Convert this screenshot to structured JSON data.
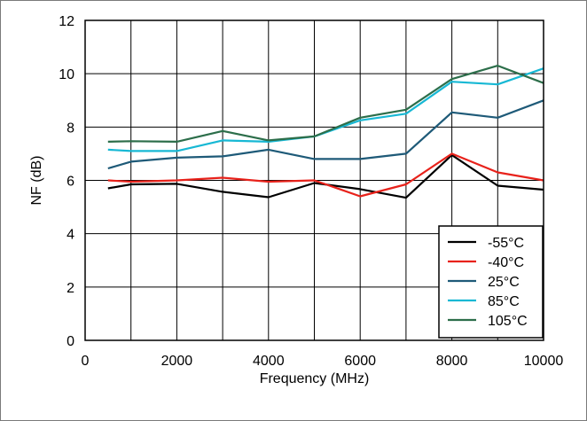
{
  "chart_data": {
    "type": "line",
    "title": "",
    "xlabel": "Frequency (MHz)",
    "ylabel": "NF (dB)",
    "xlim": [
      0,
      10000
    ],
    "ylim": [
      0,
      12
    ],
    "x_ticks": [
      0,
      2000,
      4000,
      6000,
      8000,
      10000
    ],
    "y_ticks": [
      0,
      2,
      4,
      6,
      8,
      10,
      12
    ],
    "x_tick_labels": [
      "0",
      "2000",
      "4000",
      "6000",
      "8000",
      "10000"
    ],
    "y_tick_labels": [
      "0",
      "2",
      "4",
      "6",
      "8",
      "10",
      "12"
    ],
    "x_grid": [
      0,
      1000,
      2000,
      3000,
      4000,
      5000,
      6000,
      7000,
      8000,
      9000,
      10000
    ],
    "y_grid": [
      0,
      2,
      4,
      6,
      8,
      10,
      12
    ],
    "grid": true,
    "legend_position": "bottom-right",
    "x": [
      500,
      1000,
      2000,
      3000,
      4000,
      5000,
      6000,
      7000,
      8000,
      9000,
      10000
    ],
    "series": [
      {
        "name": "-55°C",
        "color": "#000000",
        "values": [
          5.7,
          5.85,
          5.87,
          5.57,
          5.37,
          5.9,
          5.67,
          5.35,
          6.95,
          5.8,
          5.65
        ]
      },
      {
        "name": "-40°C",
        "color": "#e8221b",
        "values": [
          6.0,
          5.95,
          6.0,
          6.1,
          5.95,
          6.0,
          5.4,
          5.85,
          7.0,
          6.3,
          6.0
        ]
      },
      {
        "name": "25°C",
        "color": "#1e5a78",
        "values": [
          6.45,
          6.7,
          6.85,
          6.9,
          7.15,
          6.8,
          6.8,
          7.0,
          8.55,
          8.35,
          9.0
        ]
      },
      {
        "name": "85°C",
        "color": "#17b8d4",
        "values": [
          7.15,
          7.1,
          7.1,
          7.5,
          7.45,
          7.65,
          8.25,
          8.5,
          9.7,
          9.6,
          10.2
        ]
      },
      {
        "name": "105°C",
        "color": "#2c6e4a",
        "values": [
          7.45,
          7.47,
          7.45,
          7.85,
          7.5,
          7.65,
          8.35,
          8.65,
          9.8,
          10.3,
          9.65
        ]
      }
    ]
  }
}
